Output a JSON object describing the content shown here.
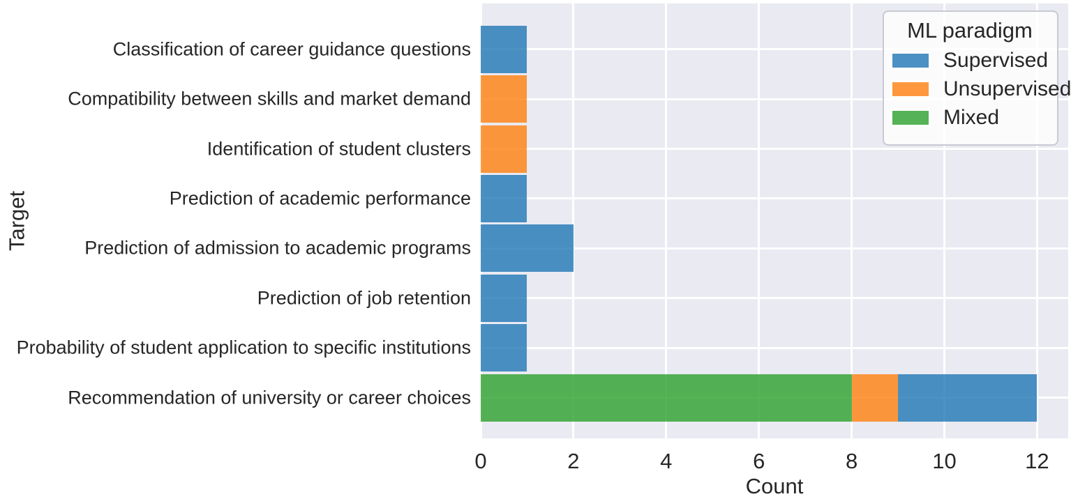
{
  "figure": {
    "background": "#ffffff",
    "plot_background": "#eaeaf2",
    "grid_color": "#ffffff",
    "text_color": "#262626"
  },
  "chart_data": {
    "type": "bar",
    "orientation": "horizontal",
    "stacked": true,
    "title": "",
    "xlabel": "Count",
    "ylabel": "Target",
    "xlim": [
      0,
      12.6
    ],
    "xticks": [
      0,
      2,
      4,
      6,
      8,
      10,
      12
    ],
    "grid": true,
    "bar_alpha": 0.8,
    "categories": [
      "Classification of career guidance questions",
      "Compatibility between skills and market demand",
      "Identification of student clusters",
      "Prediction of academic performance",
      "Prediction of admission to academic programs",
      "Prediction of job retention",
      "Probability of student application to specific institutions",
      "Recommendation of university or career choices"
    ],
    "series": [
      {
        "name": "Supervised",
        "color": "#1f77b4",
        "values": [
          1,
          0,
          0,
          1,
          2,
          1,
          1,
          3
        ]
      },
      {
        "name": "Unsupervised",
        "color": "#ff7f0e",
        "values": [
          0,
          1,
          1,
          0,
          0,
          0,
          0,
          1
        ]
      },
      {
        "name": "Mixed",
        "color": "#2ca02c",
        "values": [
          0,
          0,
          0,
          0,
          0,
          0,
          0,
          8
        ]
      }
    ],
    "stack_order": [
      "Mixed",
      "Unsupervised",
      "Supervised"
    ],
    "legend": {
      "title": "ML paradigm",
      "position": "upper-right"
    }
  }
}
